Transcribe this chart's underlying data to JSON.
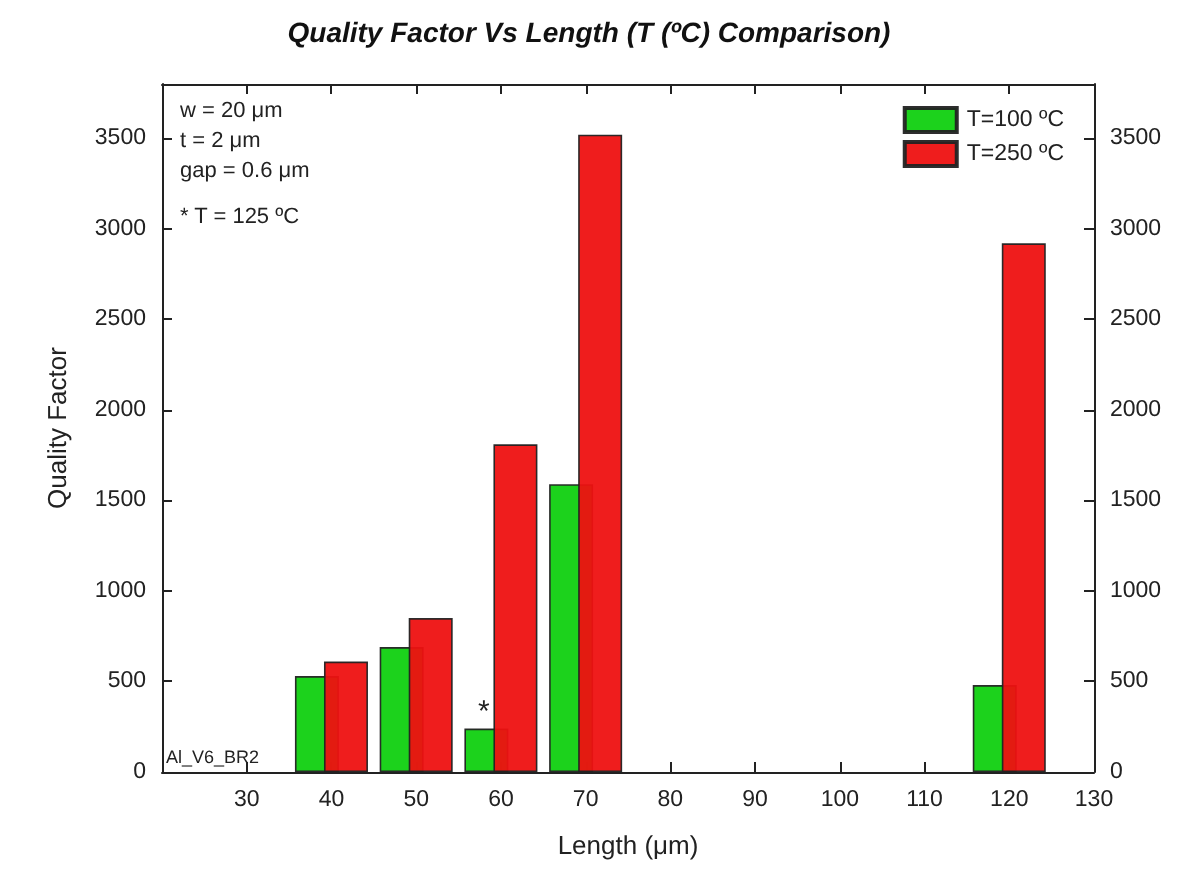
{
  "chart_data": {
    "type": "bar",
    "title": "Quality Factor Vs Length (T (ºC) Comparison)",
    "xlabel": "Length (μm)",
    "ylabel": "Quality Factor",
    "x": [
      40,
      50,
      60,
      70,
      120
    ],
    "series": [
      {
        "name": "T=100 ºC",
        "color": "#10d010",
        "values": [
          530,
          690,
          240,
          1590,
          480
        ]
      },
      {
        "name": "T=250 ºC",
        "color": "#ee1111",
        "values": [
          610,
          850,
          1810,
          3520,
          2920
        ]
      }
    ],
    "xlim": [
      20,
      130
    ],
    "xticks": [
      30,
      40,
      50,
      60,
      70,
      80,
      90,
      100,
      110,
      120,
      130
    ],
    "ylim": [
      0,
      3800
    ],
    "yticks": [
      0,
      500,
      1000,
      1500,
      2000,
      2500,
      3000,
      3500
    ],
    "y2lim": [
      0,
      3800
    ],
    "y2ticks": [
      0,
      500,
      1000,
      1500,
      2000,
      2500,
      3000,
      3500
    ],
    "annotations": [
      "w = 20 μm",
      "t = 2 μm",
      "gap = 0.6 μm",
      "* T = 125 ºC",
      {
        "text": "*",
        "x": 58,
        "y": 240
      },
      "Al_V6_BR2"
    ],
    "legend": "top right",
    "grid": false
  }
}
